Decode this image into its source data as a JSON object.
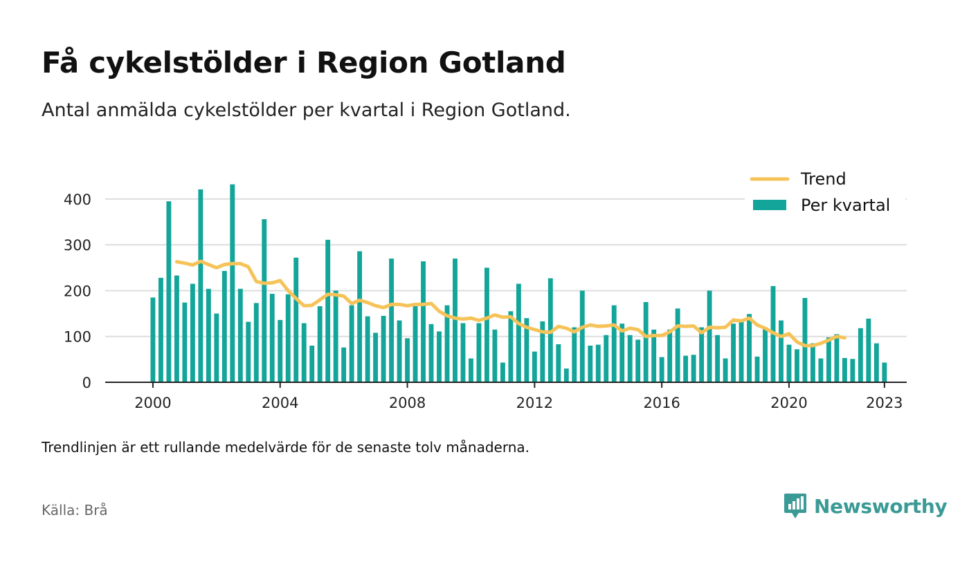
{
  "title": "Få cykelstölder i Region Gotland",
  "subtitle": "Antal anmälda cykelstölder per kvartal i Region Gotland.",
  "note": "Trendlinjen är ett rullande medelvärde för de senaste tolv månaderna.",
  "source": "Källa: Brå",
  "brand": "Newsworthy",
  "colors": {
    "bar": "#13a59a",
    "trend": "#f6c358",
    "grid": "#dddddd",
    "axis": "#222222",
    "brand": "#3a9a96"
  },
  "chart_data": {
    "type": "bar",
    "title": "",
    "xlabel": "",
    "ylabel": "",
    "ylim": [
      0,
      430
    ],
    "xlim": [
      1998.5,
      2023.7
    ],
    "y_ticks": [
      0,
      100,
      200,
      300,
      400
    ],
    "x_ticks": [
      2000,
      2004,
      2008,
      2012,
      2016,
      2020,
      2023
    ],
    "grid": true,
    "legend_position": "top-right",
    "series": [
      {
        "name": "Per kvartal",
        "type": "bar",
        "start_year": 2000,
        "values": [
          185,
          228,
          395,
          233,
          174,
          215,
          421,
          204,
          150,
          243,
          432,
          204,
          132,
          173,
          356,
          193,
          136,
          192,
          272,
          129,
          80,
          166,
          311,
          200,
          76,
          168,
          286,
          144,
          108,
          145,
          270,
          135,
          96,
          166,
          264,
          127,
          111,
          168,
          270,
          129,
          52,
          129,
          250,
          115,
          43,
          155,
          215,
          140,
          67,
          133,
          227,
          83,
          30,
          120,
          200,
          80,
          82,
          103,
          168,
          128,
          103,
          93,
          175,
          115,
          55,
          115,
          161,
          58,
          60,
          120,
          200,
          103,
          52,
          128,
          135,
          149,
          56,
          120,
          210,
          135,
          82,
          72,
          184,
          85,
          52,
          98,
          105,
          53,
          51,
          118,
          139,
          85,
          43
        ]
      },
      {
        "name": "Trend",
        "type": "line",
        "start_year": 2000.75,
        "values": [
          263,
          260,
          256,
          264,
          257,
          250,
          257,
          259,
          259,
          252,
          220,
          216,
          217,
          222,
          200,
          183,
          167,
          168,
          180,
          192,
          191,
          188,
          172,
          179,
          174,
          167,
          163,
          170,
          170,
          167,
          170,
          170,
          172,
          155,
          145,
          140,
          138,
          140,
          135,
          140,
          147,
          142,
          143,
          128,
          120,
          115,
          110,
          109,
          122,
          118,
          110,
          120,
          125,
          122,
          123,
          125,
          112,
          118,
          115,
          100,
          102,
          102,
          110,
          123,
          122,
          123,
          108,
          120,
          119,
          120,
          136,
          134,
          140,
          125,
          118,
          108,
          100,
          106,
          88,
          80,
          80,
          85,
          92,
          100,
          97
        ]
      }
    ]
  }
}
